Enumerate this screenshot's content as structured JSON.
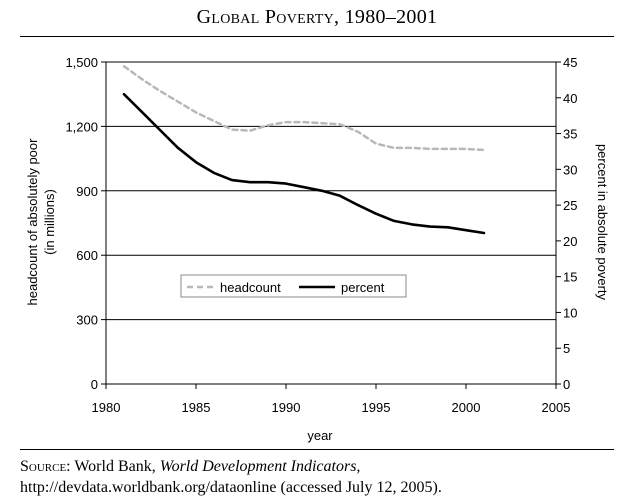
{
  "title": "Global Poverty, 1980–2001",
  "source": {
    "label": "Source:",
    "publisher": "World Bank,",
    "publication": "World Development Indicators,",
    "rest": "http://devdata.worldbank.org/dataonline (accessed July 12, 2005)."
  },
  "chart_data": {
    "type": "line",
    "title": "Global Poverty, 1980–2001",
    "xlabel": "year",
    "ylabel_left": [
      "headcount of absolutely poor",
      "(in millions)"
    ],
    "ylabel_right": "percent in absolute poverty",
    "xlim": [
      1980,
      2005
    ],
    "ylim_left": [
      0,
      1500
    ],
    "ylim_right": [
      0,
      45
    ],
    "x_ticks": [
      "1980",
      "1985",
      "1990",
      "1995",
      "2000",
      "2005"
    ],
    "y_left_ticks": [
      "0",
      "300",
      "600",
      "900",
      "1,200",
      "1,500"
    ],
    "y_right_ticks": [
      "0",
      "5",
      "10",
      "15",
      "20",
      "25",
      "30",
      "35",
      "40",
      "45"
    ],
    "grid": "horizontal",
    "legend": {
      "placement": "center-left",
      "entries": [
        "headcount",
        "percent"
      ]
    },
    "series": [
      {
        "name": "headcount",
        "axis": "left",
        "style": "dashed",
        "color": "#b8b8b8",
        "x": [
          1981,
          1982,
          1983,
          1984,
          1985,
          1986,
          1987,
          1988,
          1989,
          1990,
          1991,
          1992,
          1993,
          1994,
          1995,
          1996,
          1997,
          1998,
          1999,
          2000,
          2001
        ],
        "values": [
          1480,
          1420,
          1365,
          1315,
          1265,
          1225,
          1185,
          1180,
          1205,
          1220,
          1220,
          1215,
          1210,
          1175,
          1120,
          1100,
          1100,
          1095,
          1095,
          1095,
          1090
        ]
      },
      {
        "name": "percent",
        "axis": "right",
        "style": "solid",
        "color": "#000000",
        "x": [
          1981,
          1982,
          1983,
          1984,
          1985,
          1986,
          1987,
          1988,
          1989,
          1990,
          1991,
          1992,
          1993,
          1994,
          1995,
          1996,
          1997,
          1998,
          1999,
          2000,
          2001
        ],
        "values": [
          40.5,
          38.0,
          35.5,
          33.0,
          31.0,
          29.5,
          28.5,
          28.2,
          28.2,
          28.0,
          27.5,
          27.0,
          26.3,
          25.0,
          23.8,
          22.8,
          22.3,
          22.0,
          21.9,
          21.5,
          21.1
        ]
      }
    ]
  }
}
